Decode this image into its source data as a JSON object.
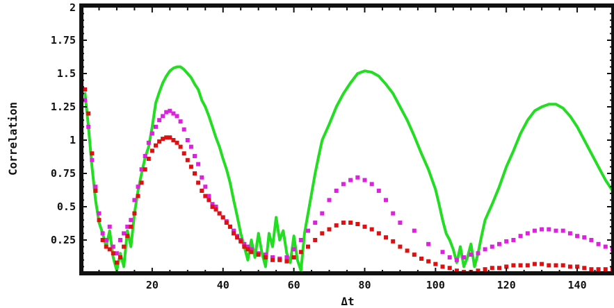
{
  "chart_data": {
    "type": "scatter",
    "title": "",
    "xlabel": "Δt",
    "ylabel": "Correlation",
    "xlim": [
      0,
      150
    ],
    "ylim": [
      0,
      2
    ],
    "grid": false,
    "x_ticks": [
      20,
      40,
      60,
      80,
      100,
      120,
      140
    ],
    "x_tick_labels": [
      "20",
      "40",
      "60",
      "80",
      "100",
      "120",
      "140"
    ],
    "y_ticks": [
      0.25,
      0.5,
      0.75,
      1,
      1.25,
      1.5,
      1.75,
      2
    ],
    "y_tick_labels": [
      "0.25",
      "0.5",
      "0.75",
      "1",
      "1.25",
      "1.5",
      "1.75",
      "2"
    ],
    "series": [
      {
        "color": "#22dd22",
        "style": "line",
        "points": [
          [
            1,
            1.36
          ],
          [
            2,
            1.1
          ],
          [
            3,
            0.8
          ],
          [
            4,
            0.55
          ],
          [
            5,
            0.38
          ],
          [
            6,
            0.3
          ],
          [
            7,
            0.2
          ],
          [
            8,
            0.32
          ],
          [
            9,
            0.12
          ],
          [
            10,
            0.02
          ],
          [
            11,
            0.15
          ],
          [
            12,
            0.05
          ],
          [
            13,
            0.32
          ],
          [
            14,
            0.2
          ],
          [
            15,
            0.45
          ],
          [
            16,
            0.62
          ],
          [
            17,
            0.75
          ],
          [
            18,
            0.87
          ],
          [
            19,
            0.95
          ],
          [
            20,
            1.1
          ],
          [
            21,
            1.28
          ],
          [
            22,
            1.36
          ],
          [
            23,
            1.43
          ],
          [
            24,
            1.48
          ],
          [
            25,
            1.52
          ],
          [
            26,
            1.54
          ],
          [
            27,
            1.55
          ],
          [
            28,
            1.55
          ],
          [
            29,
            1.53
          ],
          [
            30,
            1.5
          ],
          [
            31,
            1.47
          ],
          [
            32,
            1.42
          ],
          [
            33,
            1.38
          ],
          [
            34,
            1.3
          ],
          [
            35,
            1.25
          ],
          [
            36,
            1.18
          ],
          [
            37,
            1.1
          ],
          [
            38,
            1.02
          ],
          [
            39,
            0.95
          ],
          [
            40,
            0.86
          ],
          [
            41,
            0.78
          ],
          [
            42,
            0.68
          ],
          [
            43,
            0.55
          ],
          [
            44,
            0.43
          ],
          [
            45,
            0.3
          ],
          [
            46,
            0.2
          ],
          [
            47,
            0.1
          ],
          [
            48,
            0.25
          ],
          [
            49,
            0.12
          ],
          [
            50,
            0.3
          ],
          [
            51,
            0.15
          ],
          [
            52,
            0.05
          ],
          [
            53,
            0.3
          ],
          [
            54,
            0.2
          ],
          [
            55,
            0.42
          ],
          [
            56,
            0.25
          ],
          [
            57,
            0.32
          ],
          [
            58,
            0.15
          ],
          [
            59,
            0.08
          ],
          [
            60,
            0.28
          ],
          [
            61,
            0.1
          ],
          [
            62,
            0.02
          ],
          [
            63,
            0.3
          ],
          [
            64,
            0.45
          ],
          [
            65,
            0.6
          ],
          [
            66,
            0.75
          ],
          [
            67,
            0.88
          ],
          [
            68,
            1.0
          ],
          [
            70,
            1.12
          ],
          [
            72,
            1.25
          ],
          [
            74,
            1.35
          ],
          [
            76,
            1.43
          ],
          [
            78,
            1.5
          ],
          [
            80,
            1.52
          ],
          [
            82,
            1.51
          ],
          [
            84,
            1.48
          ],
          [
            86,
            1.42
          ],
          [
            88,
            1.35
          ],
          [
            90,
            1.25
          ],
          [
            92,
            1.15
          ],
          [
            94,
            1.03
          ],
          [
            96,
            0.9
          ],
          [
            98,
            0.78
          ],
          [
            100,
            0.63
          ],
          [
            101,
            0.52
          ],
          [
            102,
            0.4
          ],
          [
            103,
            0.3
          ],
          [
            104,
            0.25
          ],
          [
            105,
            0.18
          ],
          [
            106,
            0.08
          ],
          [
            107,
            0.2
          ],
          [
            108,
            0.05
          ],
          [
            109,
            0.12
          ],
          [
            110,
            0.22
          ],
          [
            111,
            0.05
          ],
          [
            112,
            0.15
          ],
          [
            113,
            0.28
          ],
          [
            114,
            0.4
          ],
          [
            116,
            0.52
          ],
          [
            118,
            0.65
          ],
          [
            120,
            0.8
          ],
          [
            122,
            0.92
          ],
          [
            124,
            1.05
          ],
          [
            126,
            1.15
          ],
          [
            128,
            1.22
          ],
          [
            130,
            1.25
          ],
          [
            132,
            1.27
          ],
          [
            134,
            1.27
          ],
          [
            136,
            1.24
          ],
          [
            138,
            1.18
          ],
          [
            140,
            1.1
          ],
          [
            142,
            1.0
          ],
          [
            144,
            0.9
          ],
          [
            146,
            0.8
          ],
          [
            148,
            0.7
          ],
          [
            150,
            0.62
          ]
        ]
      },
      {
        "color": "#dd22dd",
        "style": "points",
        "points": [
          [
            1,
            1.3
          ],
          [
            2,
            1.1
          ],
          [
            3,
            0.85
          ],
          [
            4,
            0.65
          ],
          [
            5,
            0.45
          ],
          [
            6,
            0.3
          ],
          [
            7,
            0.25
          ],
          [
            8,
            0.35
          ],
          [
            9,
            0.2
          ],
          [
            10,
            0.15
          ],
          [
            11,
            0.25
          ],
          [
            12,
            0.3
          ],
          [
            13,
            0.35
          ],
          [
            14,
            0.4
          ],
          [
            15,
            0.55
          ],
          [
            16,
            0.65
          ],
          [
            17,
            0.78
          ],
          [
            18,
            0.88
          ],
          [
            19,
            0.98
          ],
          [
            20,
            1.05
          ],
          [
            21,
            1.1
          ],
          [
            22,
            1.15
          ],
          [
            23,
            1.18
          ],
          [
            24,
            1.21
          ],
          [
            25,
            1.22
          ],
          [
            26,
            1.2
          ],
          [
            27,
            1.18
          ],
          [
            28,
            1.14
          ],
          [
            29,
            1.08
          ],
          [
            30,
            1.0
          ],
          [
            31,
            0.95
          ],
          [
            32,
            0.88
          ],
          [
            33,
            0.82
          ],
          [
            34,
            0.72
          ],
          [
            35,
            0.65
          ],
          [
            36,
            0.58
          ],
          [
            37,
            0.52
          ],
          [
            38,
            0.5
          ],
          [
            39,
            0.45
          ],
          [
            40,
            0.42
          ],
          [
            41,
            0.39
          ],
          [
            42,
            0.35
          ],
          [
            43,
            0.32
          ],
          [
            44,
            0.28
          ],
          [
            45,
            0.25
          ],
          [
            46,
            0.22
          ],
          [
            47,
            0.2
          ],
          [
            48,
            0.18
          ],
          [
            50,
            0.15
          ],
          [
            52,
            0.14
          ],
          [
            54,
            0.12
          ],
          [
            56,
            0.11
          ],
          [
            58,
            0.12
          ],
          [
            60,
            0.18
          ],
          [
            62,
            0.25
          ],
          [
            64,
            0.32
          ],
          [
            66,
            0.38
          ],
          [
            68,
            0.45
          ],
          [
            70,
            0.55
          ],
          [
            72,
            0.62
          ],
          [
            74,
            0.67
          ],
          [
            76,
            0.7
          ],
          [
            78,
            0.72
          ],
          [
            80,
            0.7
          ],
          [
            82,
            0.67
          ],
          [
            84,
            0.62
          ],
          [
            86,
            0.55
          ],
          [
            88,
            0.45
          ],
          [
            90,
            0.38
          ],
          [
            94,
            0.32
          ],
          [
            98,
            0.22
          ],
          [
            102,
            0.16
          ],
          [
            104,
            0.12
          ],
          [
            106,
            0.1
          ],
          [
            108,
            0.12
          ],
          [
            110,
            0.14
          ],
          [
            112,
            0.15
          ],
          [
            114,
            0.18
          ],
          [
            116,
            0.2
          ],
          [
            118,
            0.22
          ],
          [
            120,
            0.24
          ],
          [
            122,
            0.25
          ],
          [
            124,
            0.28
          ],
          [
            126,
            0.3
          ],
          [
            128,
            0.32
          ],
          [
            130,
            0.33
          ],
          [
            132,
            0.33
          ],
          [
            134,
            0.32
          ],
          [
            136,
            0.32
          ],
          [
            138,
            0.3
          ],
          [
            140,
            0.28
          ],
          [
            142,
            0.27
          ],
          [
            144,
            0.25
          ],
          [
            146,
            0.22
          ],
          [
            148,
            0.2
          ],
          [
            150,
            0.18
          ]
        ]
      },
      {
        "color": "#dd1111",
        "style": "points",
        "points": [
          [
            1,
            1.38
          ],
          [
            2,
            1.2
          ],
          [
            3,
            0.9
          ],
          [
            4,
            0.62
          ],
          [
            5,
            0.4
          ],
          [
            6,
            0.25
          ],
          [
            7,
            0.2
          ],
          [
            8,
            0.18
          ],
          [
            9,
            0.15
          ],
          [
            10,
            0.08
          ],
          [
            11,
            0.12
          ],
          [
            12,
            0.2
          ],
          [
            13,
            0.28
          ],
          [
            14,
            0.35
          ],
          [
            15,
            0.45
          ],
          [
            16,
            0.58
          ],
          [
            17,
            0.68
          ],
          [
            18,
            0.78
          ],
          [
            19,
            0.86
          ],
          [
            20,
            0.92
          ],
          [
            21,
            0.96
          ],
          [
            22,
            0.99
          ],
          [
            23,
            1.01
          ],
          [
            24,
            1.02
          ],
          [
            25,
            1.02
          ],
          [
            26,
            1.0
          ],
          [
            27,
            0.98
          ],
          [
            28,
            0.95
          ],
          [
            29,
            0.9
          ],
          [
            30,
            0.85
          ],
          [
            31,
            0.8
          ],
          [
            32,
            0.75
          ],
          [
            33,
            0.68
          ],
          [
            34,
            0.62
          ],
          [
            35,
            0.58
          ],
          [
            36,
            0.55
          ],
          [
            37,
            0.5
          ],
          [
            38,
            0.48
          ],
          [
            39,
            0.45
          ],
          [
            40,
            0.42
          ],
          [
            41,
            0.38
          ],
          [
            42,
            0.35
          ],
          [
            43,
            0.3
          ],
          [
            44,
            0.27
          ],
          [
            45,
            0.24
          ],
          [
            46,
            0.2
          ],
          [
            47,
            0.18
          ],
          [
            48,
            0.16
          ],
          [
            50,
            0.14
          ],
          [
            52,
            0.12
          ],
          [
            54,
            0.1
          ],
          [
            56,
            0.1
          ],
          [
            58,
            0.09
          ],
          [
            60,
            0.12
          ],
          [
            62,
            0.16
          ],
          [
            64,
            0.2
          ],
          [
            66,
            0.25
          ],
          [
            68,
            0.3
          ],
          [
            70,
            0.33
          ],
          [
            72,
            0.36
          ],
          [
            74,
            0.38
          ],
          [
            76,
            0.38
          ],
          [
            78,
            0.37
          ],
          [
            80,
            0.35
          ],
          [
            82,
            0.33
          ],
          [
            84,
            0.3
          ],
          [
            86,
            0.27
          ],
          [
            88,
            0.24
          ],
          [
            90,
            0.2
          ],
          [
            92,
            0.17
          ],
          [
            94,
            0.14
          ],
          [
            96,
            0.11
          ],
          [
            98,
            0.09
          ],
          [
            100,
            0.07
          ],
          [
            102,
            0.05
          ],
          [
            104,
            0.04
          ],
          [
            106,
            0.02
          ],
          [
            108,
            0.01
          ],
          [
            110,
            0.01
          ],
          [
            112,
            0.02
          ],
          [
            114,
            0.03
          ],
          [
            116,
            0.04
          ],
          [
            118,
            0.04
          ],
          [
            120,
            0.05
          ],
          [
            122,
            0.06
          ],
          [
            124,
            0.06
          ],
          [
            126,
            0.06
          ],
          [
            128,
            0.07
          ],
          [
            130,
            0.07
          ],
          [
            132,
            0.06
          ],
          [
            134,
            0.06
          ],
          [
            136,
            0.06
          ],
          [
            138,
            0.05
          ],
          [
            140,
            0.05
          ],
          [
            142,
            0.04
          ],
          [
            144,
            0.03
          ],
          [
            146,
            0.03
          ],
          [
            148,
            0.03
          ],
          [
            150,
            0.03
          ]
        ]
      }
    ]
  }
}
